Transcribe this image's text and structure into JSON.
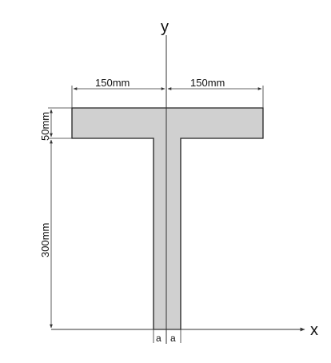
{
  "diagram": {
    "axes": {
      "x_label": "x",
      "y_label": "y"
    },
    "dimensions": {
      "flange_left_width": "150mm",
      "flange_right_width": "150mm",
      "flange_thickness": "50mm",
      "web_height": "300mm",
      "web_half_left": "a",
      "web_half_right": "a"
    },
    "colors": {
      "section_fill": "#d0d0d0",
      "outline": "#222222",
      "dimension_line": "#333333",
      "background": "#ffffff"
    }
  }
}
